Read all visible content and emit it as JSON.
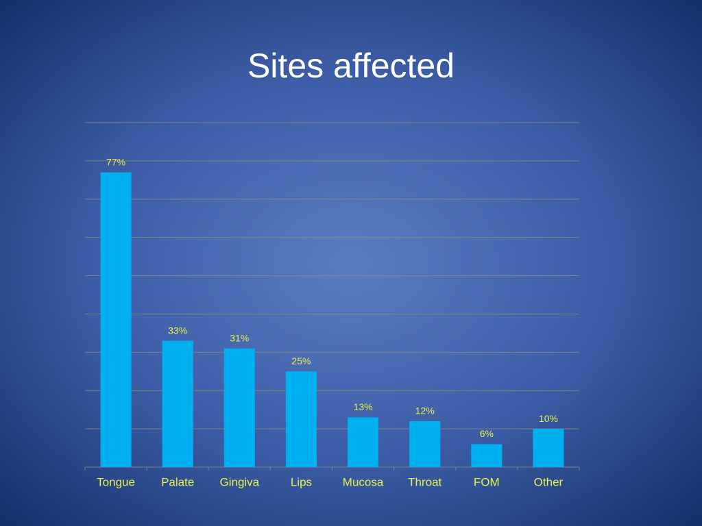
{
  "chart_data": {
    "type": "bar",
    "title": "Sites affected",
    "categories": [
      "Tongue",
      "Palate",
      "Gingiva",
      "Lips",
      "Mucosa",
      "Throat",
      "FOM",
      "Other"
    ],
    "values": [
      77,
      33,
      31,
      25,
      13,
      12,
      6,
      10
    ],
    "value_labels": [
      "77%",
      "33%",
      "31%",
      "25%",
      "13%",
      "12%",
      "6%",
      "10%"
    ],
    "color": "#00b0f0",
    "ylim": [
      0,
      90
    ],
    "yticks": [
      0,
      10,
      20,
      30,
      40,
      50,
      60,
      70,
      80,
      90
    ],
    "grid": true
  }
}
